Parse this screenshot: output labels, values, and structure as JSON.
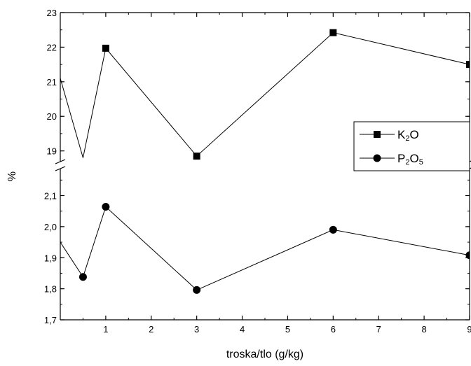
{
  "chart_data": {
    "type": "line",
    "xlabel": "troska/tlo (g/kg)",
    "ylabel": "%",
    "x_ticks": [
      "1",
      "2",
      "3",
      "4",
      "5",
      "6",
      "7",
      "8",
      "9"
    ],
    "xlim": [
      0,
      9
    ],
    "axis_break": true,
    "grid": false,
    "legend_position": "right",
    "panels": [
      {
        "name": "upper",
        "ylim": [
          18.75,
          23
        ],
        "y_ticks": [
          "19",
          "20",
          "21",
          "22",
          "23"
        ]
      },
      {
        "name": "lower",
        "ylim": [
          1.7,
          2.18
        ],
        "y_ticks": [
          "1,7",
          "1,8",
          "1,9",
          "2,0",
          "2,1"
        ]
      }
    ],
    "series": [
      {
        "name": "K2O",
        "label_main": "K",
        "label_sub": "2",
        "label_tail": "O",
        "label_tail_sub": "",
        "marker": "square",
        "panel": "upper",
        "x": [
          0,
          0.5,
          1,
          3,
          6,
          9
        ],
        "y": [
          21.1,
          18.8,
          21.97,
          18.85,
          22.42,
          21.5
        ],
        "marker_x": [
          1,
          3,
          6,
          9
        ]
      },
      {
        "name": "P2O5",
        "label_main": "P",
        "label_sub": "2",
        "label_tail": "O",
        "label_tail_sub": "5",
        "marker": "circle",
        "panel": "lower",
        "x": [
          0,
          0.5,
          1,
          3,
          6,
          9
        ],
        "y": [
          1.95,
          1.838,
          2.064,
          1.796,
          1.99,
          1.908
        ],
        "marker_x": [
          0.5,
          1,
          3,
          6,
          9
        ]
      }
    ]
  }
}
